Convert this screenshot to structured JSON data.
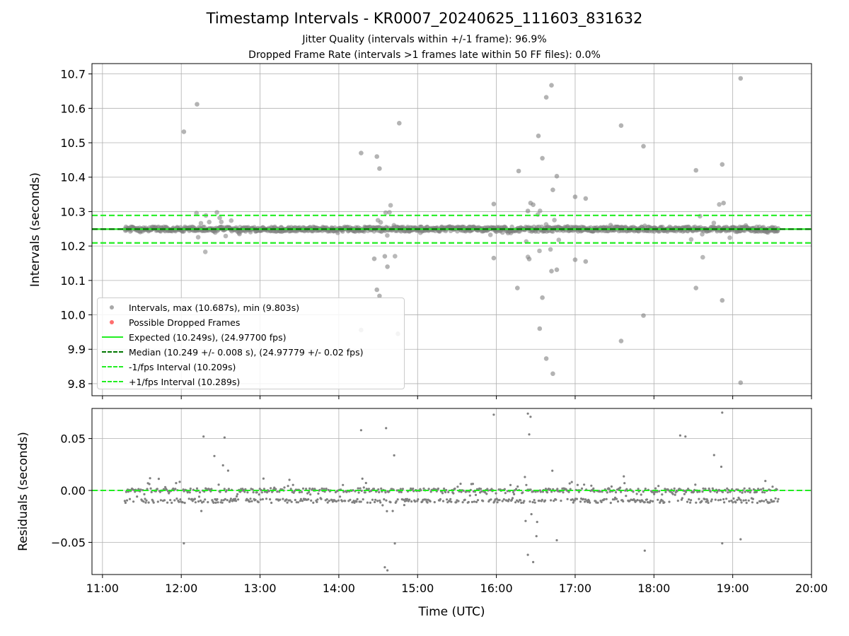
{
  "title": "Timestamp Intervals - KR0007_20240625_111603_831632",
  "subtitle_jitter": "Jitter Quality (intervals within +/-1 frame): 96.9%",
  "subtitle_dropped": "Dropped Frame Rate (intervals >1 frames late within 50 FF files): 0.0%",
  "colors": {
    "points": "#808080",
    "dropped": "#ff4444",
    "expected": "#22ee22",
    "median": "#007700",
    "bounds": "#22ee22",
    "grid": "#b0b0b0"
  },
  "chart_data": [
    {
      "type": "scatter",
      "ylabel": "Intervals (seconds)",
      "xlim": [
        "10:52",
        "20:00"
      ],
      "ylim": [
        9.765,
        10.73
      ],
      "y_ticks": [
        "9.8",
        "9.9",
        "10.0",
        "10.1",
        "10.2",
        "10.3",
        "10.4",
        "10.5",
        "10.6",
        "10.7"
      ],
      "grid": true,
      "legend_position": "lower-left",
      "reference_lines": {
        "expected": 10.249,
        "median": 10.249,
        "lower": 10.209,
        "upper": 10.289
      },
      "band": {
        "start": "11:17",
        "end": "19:35",
        "center": 10.249,
        "half_width": 0.015
      },
      "outliers": [
        {
          "x": "12:02",
          "y": 10.532
        },
        {
          "x": "12:12",
          "y": 10.612
        },
        {
          "x": "14:17",
          "y": 10.47
        },
        {
          "x": "14:29",
          "y": 10.46
        },
        {
          "x": "14:31",
          "y": 10.425
        },
        {
          "x": "14:46",
          "y": 10.557
        },
        {
          "x": "14:27",
          "y": 10.163
        },
        {
          "x": "14:35",
          "y": 10.17
        },
        {
          "x": "14:37",
          "y": 10.14
        },
        {
          "x": "14:29",
          "y": 10.073
        },
        {
          "x": "14:31",
          "y": 10.055
        },
        {
          "x": "14:17",
          "y": 9.956
        },
        {
          "x": "14:45",
          "y": 9.945
        },
        {
          "x": "15:58",
          "y": 10.322
        },
        {
          "x": "15:58",
          "y": 10.165
        },
        {
          "x": "16:17",
          "y": 10.418
        },
        {
          "x": "16:16",
          "y": 10.078
        },
        {
          "x": "16:24",
          "y": 10.302
        },
        {
          "x": "16:26",
          "y": 10.325
        },
        {
          "x": "16:28",
          "y": 10.32
        },
        {
          "x": "16:32",
          "y": 10.52
        },
        {
          "x": "16:35",
          "y": 10.455
        },
        {
          "x": "16:38",
          "y": 10.632
        },
        {
          "x": "16:42",
          "y": 10.667
        },
        {
          "x": "16:43",
          "y": 10.363
        },
        {
          "x": "16:46",
          "y": 10.403
        },
        {
          "x": "16:42",
          "y": 10.127
        },
        {
          "x": "16:46",
          "y": 10.131
        },
        {
          "x": "16:33",
          "y": 9.96
        },
        {
          "x": "16:35",
          "y": 10.05
        },
        {
          "x": "16:38",
          "y": 9.873
        },
        {
          "x": "16:43",
          "y": 9.829
        },
        {
          "x": "16:25",
          "y": 10.162
        },
        {
          "x": "17:00",
          "y": 10.343
        },
        {
          "x": "17:08",
          "y": 10.338
        },
        {
          "x": "17:00",
          "y": 10.16
        },
        {
          "x": "17:08",
          "y": 10.155
        },
        {
          "x": "17:35",
          "y": 10.55
        },
        {
          "x": "17:35",
          "y": 9.924
        },
        {
          "x": "17:52",
          "y": 10.49
        },
        {
          "x": "17:52",
          "y": 9.998
        },
        {
          "x": "18:32",
          "y": 10.42
        },
        {
          "x": "18:32",
          "y": 10.078
        },
        {
          "x": "18:52",
          "y": 10.437
        },
        {
          "x": "18:52",
          "y": 10.042
        },
        {
          "x": "18:53",
          "y": 10.325
        },
        {
          "x": "19:06",
          "y": 10.687
        },
        {
          "x": "19:06",
          "y": 9.803
        }
      ],
      "legend": [
        {
          "label": "Intervals, max (10.687s), min (9.803s)",
          "marker": "dot",
          "color": "#999999"
        },
        {
          "label": "Possible Dropped Frames",
          "marker": "dot",
          "color": "#ff5555"
        },
        {
          "label": "Expected (10.249s), (24.97700 fps)",
          "marker": "line",
          "color": "#22ee22",
          "style": "solid"
        },
        {
          "label": "Median (10.249 +/- 0.008 s), (24.97779 +/- 0.02 fps)",
          "marker": "line",
          "color": "#007700",
          "style": "dashed"
        },
        {
          "label": "-1/fps Interval (10.209s)",
          "marker": "line",
          "color": "#22ee22",
          "style": "dashed"
        },
        {
          "label": "+1/fps Interval (10.289s)",
          "marker": "line",
          "color": "#22ee22",
          "style": "dashed"
        }
      ]
    },
    {
      "type": "scatter",
      "ylabel": "Residuals (seconds)",
      "xlabel": "Time (UTC)",
      "xlim": [
        "10:52",
        "20:00"
      ],
      "ylim": [
        -0.081,
        0.079
      ],
      "y_ticks": [
        "−0.05",
        "0.00",
        "0.05"
      ],
      "x_ticks": [
        "11:00",
        "12:00",
        "13:00",
        "14:00",
        "15:00",
        "16:00",
        "17:00",
        "18:00",
        "19:00",
        "20:00"
      ],
      "grid": true,
      "zero_line": 0.0,
      "outliers": [
        {
          "x": "15:58",
          "y": 0.073
        },
        {
          "x": "16:24",
          "y": 0.074
        },
        {
          "x": "16:26",
          "y": 0.071
        },
        {
          "x": "18:52",
          "y": 0.075
        },
        {
          "x": "14:35",
          "y": -0.074
        },
        {
          "x": "14:37",
          "y": -0.077
        },
        {
          "x": "16:24",
          "y": -0.062
        },
        {
          "x": "16:28",
          "y": -0.069
        },
        {
          "x": "14:17",
          "y": 0.058
        },
        {
          "x": "14:36",
          "y": 0.06
        },
        {
          "x": "16:25",
          "y": 0.054
        },
        {
          "x": "18:20",
          "y": 0.053
        },
        {
          "x": "12:02",
          "y": -0.051
        },
        {
          "x": "17:53",
          "y": -0.058
        },
        {
          "x": "16:46",
          "y": -0.048
        },
        {
          "x": "12:17",
          "y": 0.052
        },
        {
          "x": "12:33",
          "y": 0.051
        },
        {
          "x": "18:24",
          "y": 0.052
        },
        {
          "x": "19:06",
          "y": -0.047
        },
        {
          "x": "18:52",
          "y": -0.051
        }
      ]
    }
  ]
}
